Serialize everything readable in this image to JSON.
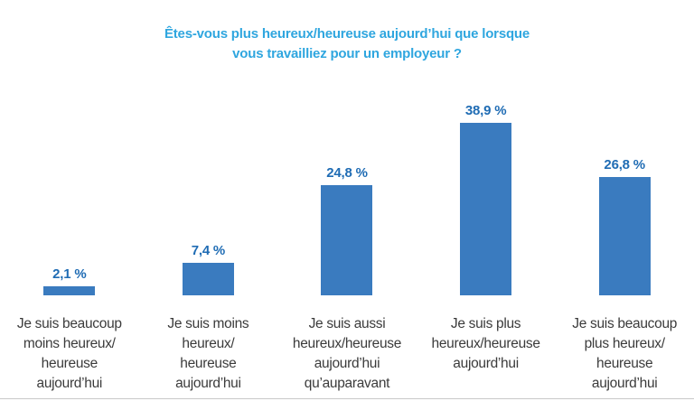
{
  "chart_data": {
    "type": "bar",
    "title": "Êtes-vous plus heureux/heureuse aujourd’hui que lorsque vous travailliez pour un employeur ?",
    "title_display": "Êtes-vous plus heureux/heureuse aujourd’hui que lorsque\nvous travailliez pour un employeur ?",
    "unit": "%",
    "categories": [
      "Je suis beaucoup moins heureux/heureuse aujourd’hui",
      "Je suis moins heureux/heureuse aujourd’hui",
      "Je suis aussi heureux/heureuse aujourd’hui qu’auparavant",
      "Je suis plus heureux/heureuse aujourd’hui",
      "Je suis beaucoup plus heureux/heureuse aujourd’hui"
    ],
    "values": [
      2.1,
      7.4,
      24.8,
      38.9,
      26.8
    ],
    "ylim": [
      0,
      40
    ],
    "grid": false,
    "axes_shown": false,
    "legend": "none",
    "bars": [
      {
        "value": 2.1,
        "value_label": "2,1 %",
        "category_display": "Je suis beaucoup\nmoins heureux/\nheureuse\naujourd’hui"
      },
      {
        "value": 7.4,
        "value_label": "7,4 %",
        "category_display": "Je suis moins\nheureux/\nheureuse\naujourd’hui"
      },
      {
        "value": 24.8,
        "value_label": "24,8 %",
        "category_display": "Je suis aussi\nheureux/heureuse\naujourd’hui\nqu’auparavant"
      },
      {
        "value": 38.9,
        "value_label": "38,9 %",
        "category_display": "Je suis plus\nheureux/heureuse\naujourd’hui"
      },
      {
        "value": 26.8,
        "value_label": "26,8 %",
        "category_display": "Je suis beaucoup\nplus heureux/\nheureuse\naujourd’hui"
      }
    ]
  },
  "colors": {
    "title": "#2fa6df",
    "value_label": "#1f6cb4",
    "bar": "#3a7bbf",
    "category_label": "#3b3b3b",
    "divider": "#c9c9c9"
  }
}
